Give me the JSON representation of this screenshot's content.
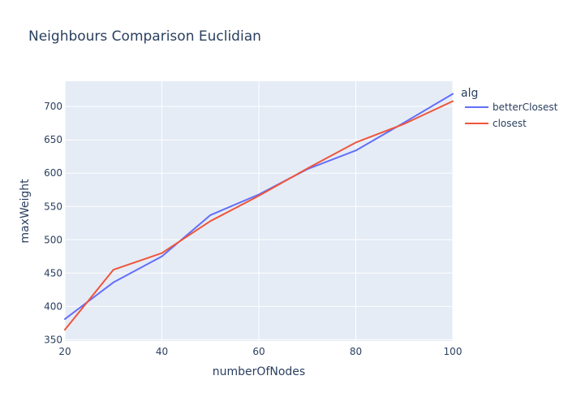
{
  "chart_data": {
    "type": "line",
    "title": "Neighbours Comparison Euclidian",
    "xlabel": "numberOfNodes",
    "ylabel": "maxWeight",
    "xlim": [
      20,
      100
    ],
    "ylim": [
      348,
      738
    ],
    "x_ticks": [
      20,
      40,
      60,
      80,
      100
    ],
    "y_ticks": [
      350,
      400,
      450,
      500,
      550,
      600,
      650,
      700
    ],
    "grid": true,
    "legend": {
      "title": "alg",
      "placement": "right"
    },
    "plot_background": "#e5ecf6",
    "grid_color": "#ffffff",
    "series": [
      {
        "name": "betterClosest",
        "color": "#636efa",
        "x": [
          20,
          30,
          40,
          50,
          60,
          70,
          80,
          90,
          100
        ],
        "y": [
          381,
          436,
          475,
          537,
          568,
          606,
          634,
          676,
          719
        ]
      },
      {
        "name": "closest",
        "color": "#ef553b",
        "x": [
          20,
          30,
          40,
          50,
          60,
          70,
          80,
          90,
          100
        ],
        "y": [
          365,
          455,
          480,
          528,
          566,
          607,
          646,
          674,
          708
        ]
      }
    ]
  }
}
